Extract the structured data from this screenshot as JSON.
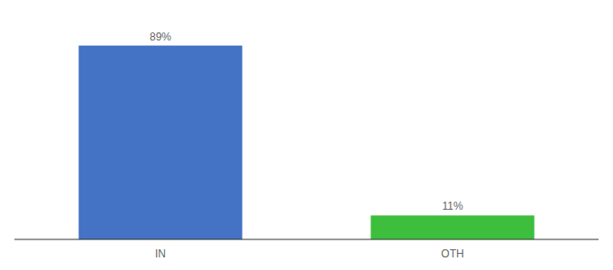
{
  "chart_data": {
    "type": "bar",
    "categories": [
      "IN",
      "OTH"
    ],
    "values": [
      89,
      11
    ],
    "value_labels": [
      "89%",
      "11%"
    ],
    "colors": [
      "#4472c4",
      "#3dbf3d"
    ],
    "ylim": [
      0,
      100
    ],
    "data_labels": true,
    "tick_labels": "x",
    "grid": false
  }
}
